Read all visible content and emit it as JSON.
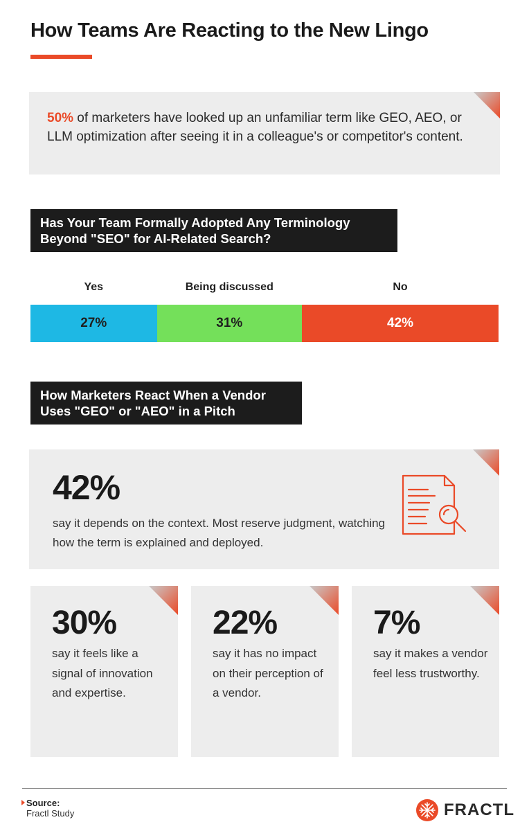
{
  "title": "How Teams Are Reacting to the New Lingo",
  "intro": {
    "pct": "50%",
    "text": " of marketers have looked up an unfamiliar term like GEO, AEO, or LLM optimization after seeing it in a colleague's or competitor's content."
  },
  "question1": "Has Your Team Formally Adopted Any Terminology Beyond \"SEO\" for AI-Related Search?",
  "question2": "How Marketers React When a Vendor Uses \"GEO\" or \"AEO\" in a Pitch",
  "chart_data": {
    "type": "bar",
    "title": "Has Your Team Formally Adopted Any Terminology Beyond \"SEO\" for AI-Related Search?",
    "categories": [
      "Yes",
      "Being discussed",
      "No"
    ],
    "values": [
      27,
      31,
      42
    ],
    "labels": [
      "27%",
      "31%",
      "42%"
    ],
    "colors": [
      "#1eb8e4",
      "#74e05a",
      "#ea4a28"
    ],
    "stacked": true
  },
  "reactions": {
    "big": {
      "pct": "42%",
      "text": "say it depends on the context. Most reserve judgment, watching how the term is explained and deployed.",
      "icon": "document-search-icon"
    },
    "small": [
      {
        "pct": "30%",
        "text": "say it feels like a signal of innovation and expertise."
      },
      {
        "pct": "22%",
        "text": "say it has no impact on their perception of a vendor."
      },
      {
        "pct": "7%",
        "text": "say it makes a vendor feel less trustworthy."
      }
    ]
  },
  "footer": {
    "source_label": "Source:",
    "source_text": "Fractl Study",
    "logo_text": "FRACTL"
  },
  "colors": {
    "accent": "#ea4a28",
    "card": "#ededed",
    "dark": "#1c1c1c"
  }
}
